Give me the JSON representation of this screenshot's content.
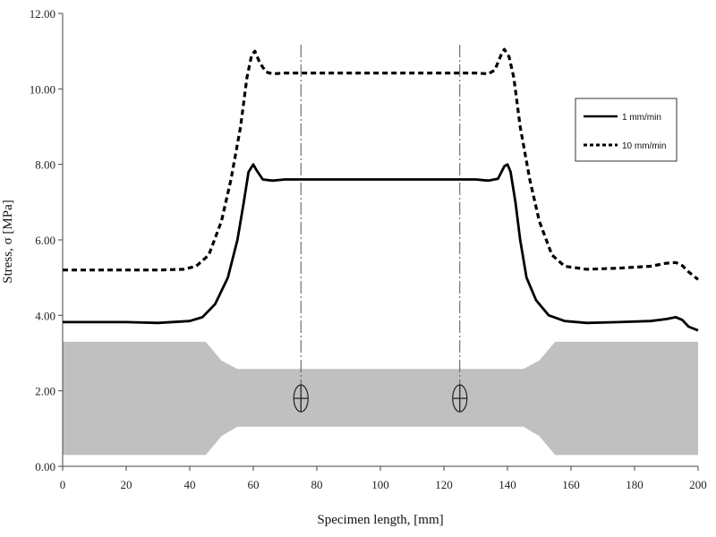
{
  "chart_data": {
    "type": "line",
    "xlabel": "Specimen length, [mm]",
    "ylabel": "Stress, σ [MPa]",
    "xlim": [
      0,
      200
    ],
    "ylim": [
      0,
      12
    ],
    "x_ticks": [
      0,
      20,
      40,
      60,
      80,
      100,
      120,
      140,
      160,
      180,
      200
    ],
    "y_ticks": [
      "0.00",
      "2.00",
      "4.00",
      "6.00",
      "8.00",
      "10.00",
      "12.00"
    ],
    "grid": false,
    "legend_position": "top-right",
    "series": [
      {
        "name": "1 mm/min",
        "style": "solid",
        "color": "#000000",
        "points": [
          [
            0,
            3.82
          ],
          [
            10,
            3.82
          ],
          [
            20,
            3.82
          ],
          [
            30,
            3.8
          ],
          [
            40,
            3.85
          ],
          [
            44,
            3.95
          ],
          [
            48,
            4.3
          ],
          [
            52,
            5.0
          ],
          [
            55,
            6.0
          ],
          [
            57,
            7.0
          ],
          [
            58.5,
            7.8
          ],
          [
            60,
            8.0
          ],
          [
            61,
            7.85
          ],
          [
            63,
            7.6
          ],
          [
            66,
            7.57
          ],
          [
            70,
            7.6
          ],
          [
            80,
            7.6
          ],
          [
            100,
            7.6
          ],
          [
            120,
            7.6
          ],
          [
            130,
            7.6
          ],
          [
            134,
            7.57
          ],
          [
            137,
            7.62
          ],
          [
            139,
            7.95
          ],
          [
            140,
            8.0
          ],
          [
            141,
            7.8
          ],
          [
            142.5,
            7.0
          ],
          [
            144,
            6.0
          ],
          [
            146,
            5.0
          ],
          [
            149,
            4.4
          ],
          [
            153,
            4.0
          ],
          [
            158,
            3.85
          ],
          [
            165,
            3.8
          ],
          [
            175,
            3.82
          ],
          [
            185,
            3.85
          ],
          [
            190,
            3.9
          ],
          [
            193,
            3.95
          ],
          [
            195,
            3.88
          ],
          [
            197,
            3.7
          ],
          [
            200,
            3.6
          ]
        ]
      },
      {
        "name": "10 mm/min",
        "style": "dashed",
        "color": "#000000",
        "points": [
          [
            0,
            5.2
          ],
          [
            10,
            5.2
          ],
          [
            20,
            5.2
          ],
          [
            30,
            5.2
          ],
          [
            38,
            5.22
          ],
          [
            42,
            5.3
          ],
          [
            46,
            5.6
          ],
          [
            50,
            6.5
          ],
          [
            53,
            7.6
          ],
          [
            56,
            9.0
          ],
          [
            58,
            10.3
          ],
          [
            59.5,
            10.9
          ],
          [
            60.5,
            11.0
          ],
          [
            62,
            10.7
          ],
          [
            64,
            10.45
          ],
          [
            66,
            10.4
          ],
          [
            70,
            10.42
          ],
          [
            80,
            10.42
          ],
          [
            100,
            10.42
          ],
          [
            120,
            10.42
          ],
          [
            130,
            10.42
          ],
          [
            134,
            10.4
          ],
          [
            136,
            10.5
          ],
          [
            138,
            10.9
          ],
          [
            139,
            11.05
          ],
          [
            140.5,
            10.85
          ],
          [
            142,
            10.3
          ],
          [
            144,
            9.0
          ],
          [
            147,
            7.6
          ],
          [
            150,
            6.5
          ],
          [
            154,
            5.6
          ],
          [
            158,
            5.3
          ],
          [
            165,
            5.22
          ],
          [
            175,
            5.25
          ],
          [
            185,
            5.3
          ],
          [
            190,
            5.38
          ],
          [
            193,
            5.4
          ],
          [
            195,
            5.32
          ],
          [
            197,
            5.15
          ],
          [
            200,
            4.95
          ]
        ]
      }
    ],
    "annotations": [
      {
        "type": "vertical-dash-dot-line",
        "x": 75
      },
      {
        "type": "vertical-dash-dot-line",
        "x": 125
      },
      {
        "type": "extensometer-marker",
        "x": 75,
        "y": 1.8
      },
      {
        "type": "extensometer-marker",
        "x": 125,
        "y": 1.8
      }
    ],
    "specimen_shape": {
      "color": "#c0c0c0",
      "outline": [
        [
          0,
          0.3
        ],
        [
          45,
          0.3
        ],
        [
          50,
          0.8
        ],
        [
          55,
          1.05
        ],
        [
          145,
          1.05
        ],
        [
          150,
          0.8
        ],
        [
          155,
          0.3
        ],
        [
          200,
          0.3
        ],
        [
          200,
          3.3
        ],
        [
          155,
          3.3
        ],
        [
          150,
          2.8
        ],
        [
          145,
          2.58
        ],
        [
          55,
          2.58
        ],
        [
          50,
          2.8
        ],
        [
          45,
          3.3
        ],
        [
          0,
          3.3
        ]
      ]
    }
  }
}
